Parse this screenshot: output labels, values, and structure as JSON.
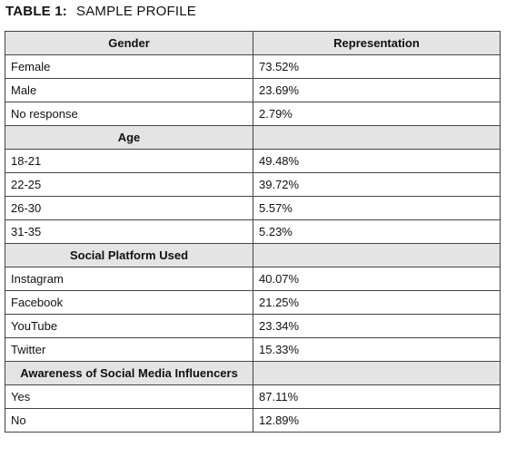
{
  "title": {
    "label": "TABLE 1:",
    "text": "SAMPLE PROFILE"
  },
  "table": {
    "header": [
      "Gender",
      "Representation"
    ],
    "groups": [
      {
        "rows": [
          [
            "Female",
            "73.52%"
          ],
          [
            "Male",
            "23.69%"
          ],
          [
            "No response",
            "2.79%"
          ]
        ]
      },
      {
        "heading": "Age",
        "rows": [
          [
            "18-21",
            "49.48%"
          ],
          [
            "22-25",
            "39.72%"
          ],
          [
            "26-30",
            "5.57%"
          ],
          [
            "31-35",
            "5.23%"
          ]
        ]
      },
      {
        "heading": "Social Platform Used",
        "rows": [
          [
            "Instagram",
            "40.07%"
          ],
          [
            "Facebook",
            "21.25%"
          ],
          [
            "YouTube",
            "23.34%"
          ],
          [
            "Twitter",
            "15.33%"
          ]
        ]
      },
      {
        "heading": "Awareness of Social Media Influencers",
        "rows": [
          [
            "Yes",
            "87.11%"
          ],
          [
            "No",
            "12.89%"
          ]
        ]
      }
    ]
  }
}
